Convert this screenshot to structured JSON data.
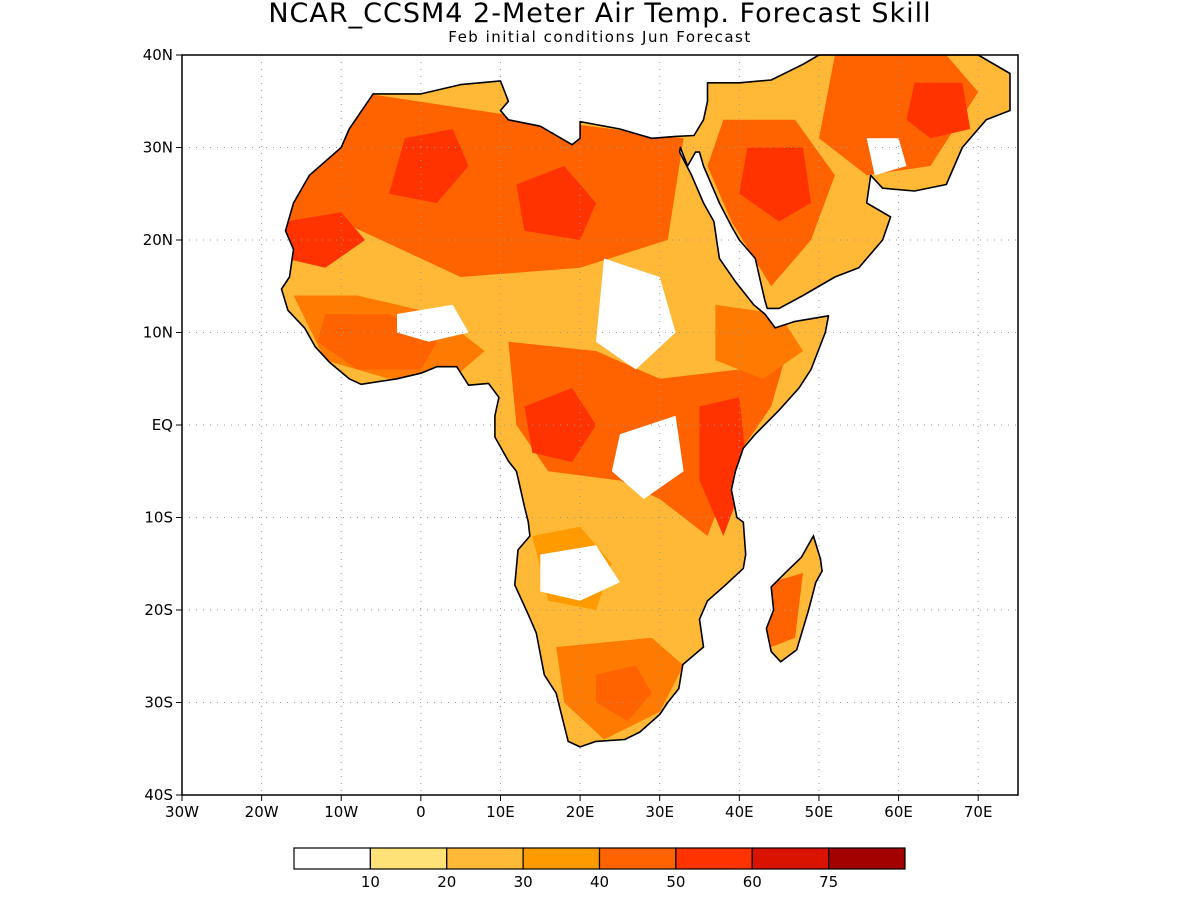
{
  "header": {
    "title": "NCAR_CCSM4 2-Meter Air Temp. Forecast Skill",
    "subtitle": "Feb initial conditions  Jun Forecast"
  },
  "map": {
    "lon_range": [
      -30,
      75
    ],
    "lat_range": [
      -40,
      40
    ],
    "lon_ticks": [
      {
        "value": -30,
        "label": "30W"
      },
      {
        "value": -20,
        "label": "20W"
      },
      {
        "value": -10,
        "label": "10W"
      },
      {
        "value": 0,
        "label": "0"
      },
      {
        "value": 10,
        "label": "10E"
      },
      {
        "value": 20,
        "label": "20E"
      },
      {
        "value": 30,
        "label": "30E"
      },
      {
        "value": 40,
        "label": "40E"
      },
      {
        "value": 50,
        "label": "50E"
      },
      {
        "value": 60,
        "label": "60E"
      },
      {
        "value": 70,
        "label": "70E"
      }
    ],
    "lat_ticks": [
      {
        "value": 40,
        "label": "40N"
      },
      {
        "value": 30,
        "label": "30N"
      },
      {
        "value": 20,
        "label": "20N"
      },
      {
        "value": 10,
        "label": "10N"
      },
      {
        "value": 0,
        "label": "EQ"
      },
      {
        "value": -10,
        "label": "10S"
      },
      {
        "value": -20,
        "label": "20S"
      },
      {
        "value": -30,
        "label": "30S"
      },
      {
        "value": -40,
        "label": "40S"
      }
    ],
    "land_outline": [
      [
        -17,
        21
      ],
      [
        -16,
        24
      ],
      [
        -14,
        27
      ],
      [
        -10,
        30
      ],
      [
        -9,
        32
      ],
      [
        -6,
        35.8
      ],
      [
        0,
        35.8
      ],
      [
        5,
        36.8
      ],
      [
        10,
        37.2
      ],
      [
        11,
        35
      ],
      [
        10,
        34
      ],
      [
        11,
        33
      ],
      [
        15,
        32.3
      ],
      [
        19,
        30.3
      ],
      [
        20,
        31
      ],
      [
        20,
        32.8
      ],
      [
        25,
        32
      ],
      [
        29,
        31
      ],
      [
        32,
        31.2
      ],
      [
        34.3,
        31.3
      ],
      [
        35.5,
        33
      ],
      [
        36,
        35
      ],
      [
        36,
        37
      ],
      [
        40,
        37
      ],
      [
        44,
        37.3
      ],
      [
        48,
        39
      ],
      [
        50,
        40
      ],
      [
        62,
        40
      ],
      [
        70,
        40
      ],
      [
        74,
        38
      ],
      [
        74,
        34
      ],
      [
        71,
        33
      ],
      [
        68,
        30
      ],
      [
        66,
        26
      ],
      [
        62,
        25.3
      ],
      [
        58,
        25.6
      ],
      [
        56.5,
        27
      ],
      [
        56,
        24
      ],
      [
        59,
        22.5
      ],
      [
        58,
        20
      ],
      [
        55,
        17
      ],
      [
        52,
        16
      ],
      [
        48,
        14
      ],
      [
        45,
        12.6
      ],
      [
        43.5,
        12.6
      ],
      [
        43.2,
        13.5
      ],
      [
        42.8,
        15
      ],
      [
        42,
        18
      ],
      [
        40,
        20
      ],
      [
        39,
        21.5
      ],
      [
        37.5,
        24
      ],
      [
        35.5,
        28
      ],
      [
        35,
        29.5
      ],
      [
        34.5,
        29.5
      ],
      [
        33.5,
        28
      ],
      [
        32.6,
        30
      ],
      [
        32.5,
        29.5
      ],
      [
        34,
        27
      ],
      [
        35.5,
        24
      ],
      [
        36.8,
        22
      ],
      [
        37.5,
        18
      ],
      [
        39.5,
        15.5
      ],
      [
        41.8,
        13
      ],
      [
        43.2,
        12
      ],
      [
        44.5,
        10.5
      ],
      [
        47,
        11.2
      ],
      [
        51.2,
        11.8
      ],
      [
        50.8,
        10
      ],
      [
        49,
        6
      ],
      [
        47.5,
        4
      ],
      [
        45,
        1.6
      ],
      [
        42,
        -1
      ],
      [
        40.5,
        -2.5
      ],
      [
        39.5,
        -5
      ],
      [
        39,
        -7
      ],
      [
        39.7,
        -10
      ],
      [
        40.5,
        -10.5
      ],
      [
        40.8,
        -14
      ],
      [
        40.5,
        -15.5
      ],
      [
        38,
        -17.5
      ],
      [
        36,
        -19
      ],
      [
        35,
        -21
      ],
      [
        35.5,
        -24
      ],
      [
        32.9,
        -25.9
      ],
      [
        32.4,
        -28.5
      ],
      [
        31,
        -30
      ],
      [
        30,
        -31.3
      ],
      [
        27.5,
        -33.2
      ],
      [
        25.6,
        -34
      ],
      [
        22,
        -34.2
      ],
      [
        20,
        -34.8
      ],
      [
        18.5,
        -34.2
      ],
      [
        18,
        -32.5
      ],
      [
        17,
        -29
      ],
      [
        15.5,
        -27
      ],
      [
        14.5,
        -22.5
      ],
      [
        13.5,
        -20.5
      ],
      [
        11.8,
        -17.3
      ],
      [
        12.2,
        -13.5
      ],
      [
        13.7,
        -12
      ],
      [
        13.5,
        -10.5
      ],
      [
        13,
        -8.8
      ],
      [
        12.3,
        -6.1
      ],
      [
        12,
        -5
      ],
      [
        11,
        -3.9
      ],
      [
        9.3,
        -1.3
      ],
      [
        9.3,
        1
      ],
      [
        9.8,
        3
      ],
      [
        8.5,
        4.5
      ],
      [
        6,
        4.3
      ],
      [
        4.5,
        6.3
      ],
      [
        2,
        6.3
      ],
      [
        0,
        5.6
      ],
      [
        -3,
        5
      ],
      [
        -7.5,
        4.4
      ],
      [
        -9,
        5
      ],
      [
        -11.5,
        6.8
      ],
      [
        -13.3,
        8.5
      ],
      [
        -14.6,
        10.5
      ],
      [
        -16.7,
        12.4
      ],
      [
        -17.5,
        14.7
      ],
      [
        -16.5,
        16
      ],
      [
        -16,
        19
      ],
      [
        -17,
        21
      ]
    ],
    "madagascar_outline": [
      [
        49.3,
        -12
      ],
      [
        50.2,
        -14.5
      ],
      [
        50.4,
        -15.8
      ],
      [
        49.6,
        -17
      ],
      [
        48.7,
        -20
      ],
      [
        47.2,
        -24.3
      ],
      [
        45.2,
        -25.6
      ],
      [
        44,
        -24.5
      ],
      [
        43.4,
        -22
      ],
      [
        44.3,
        -20
      ],
      [
        44,
        -17.5
      ],
      [
        46,
        -15.8
      ],
      [
        47.8,
        -14.3
      ],
      [
        49.3,
        -12
      ]
    ],
    "skill_areas": [
      {
        "level": 50,
        "pts": [
          [
            -12,
            36.5
          ],
          [
            15,
            33
          ],
          [
            33,
            31
          ],
          [
            31,
            20
          ],
          [
            20,
            17
          ],
          [
            5,
            16
          ],
          [
            -10,
            22
          ],
          [
            -17,
            21
          ],
          [
            -16,
            27
          ]
        ]
      },
      {
        "level": 60,
        "pts": [
          [
            -2,
            31
          ],
          [
            4,
            32
          ],
          [
            6,
            28
          ],
          [
            2,
            24
          ],
          [
            -4,
            25
          ]
        ]
      },
      {
        "level": 60,
        "pts": [
          [
            12,
            26
          ],
          [
            18,
            28
          ],
          [
            22,
            24
          ],
          [
            20,
            20
          ],
          [
            13,
            21
          ]
        ]
      },
      {
        "level": 60,
        "pts": [
          [
            -17,
            22
          ],
          [
            -10,
            23
          ],
          [
            -7,
            20
          ],
          [
            -12,
            17
          ],
          [
            -17,
            18
          ]
        ]
      },
      {
        "level": 50,
        "pts": [
          [
            38,
            33
          ],
          [
            47,
            33
          ],
          [
            52,
            27
          ],
          [
            49,
            20
          ],
          [
            44,
            15
          ],
          [
            39,
            22
          ],
          [
            36,
            28
          ]
        ]
      },
      {
        "level": 60,
        "pts": [
          [
            41,
            30
          ],
          [
            48,
            30
          ],
          [
            49,
            24
          ],
          [
            45,
            22
          ],
          [
            40,
            25
          ]
        ]
      },
      {
        "level": 50,
        "pts": [
          [
            52,
            40
          ],
          [
            66,
            40
          ],
          [
            70,
            36
          ],
          [
            64,
            28
          ],
          [
            56,
            27
          ],
          [
            50,
            31
          ]
        ]
      },
      {
        "level": 60,
        "pts": [
          [
            62,
            37
          ],
          [
            68,
            37
          ],
          [
            69,
            32
          ],
          [
            64,
            31
          ],
          [
            61,
            33
          ]
        ]
      },
      {
        "level": 40,
        "pts": [
          [
            -16,
            14
          ],
          [
            -8,
            14
          ],
          [
            2,
            12
          ],
          [
            8,
            8
          ],
          [
            4,
            5
          ],
          [
            -4,
            5
          ],
          [
            -12,
            7
          ]
        ]
      },
      {
        "level": 50,
        "pts": [
          [
            -12,
            12
          ],
          [
            -4,
            12
          ],
          [
            2,
            9
          ],
          [
            0,
            6
          ],
          [
            -8,
            6
          ],
          [
            -13,
            9
          ]
        ]
      },
      {
        "level": 50,
        "pts": [
          [
            11,
            9
          ],
          [
            22,
            8
          ],
          [
            30,
            5
          ],
          [
            40,
            6
          ],
          [
            46,
            8
          ],
          [
            44,
            2
          ],
          [
            40,
            -3
          ],
          [
            36,
            -12
          ],
          [
            30,
            -8
          ],
          [
            25,
            -6
          ],
          [
            16,
            -5
          ],
          [
            12,
            0
          ]
        ]
      },
      {
        "level": 60,
        "pts": [
          [
            13,
            2
          ],
          [
            19,
            4
          ],
          [
            22,
            0
          ],
          [
            19,
            -4
          ],
          [
            14,
            -3
          ]
        ]
      },
      {
        "level": 60,
        "pts": [
          [
            35,
            2
          ],
          [
            40,
            3
          ],
          [
            41,
            -5
          ],
          [
            38,
            -12
          ],
          [
            35,
            -6
          ]
        ]
      },
      {
        "level": 40,
        "pts": [
          [
            37,
            13
          ],
          [
            45,
            12
          ],
          [
            48,
            8
          ],
          [
            43,
            5
          ],
          [
            37,
            7
          ]
        ]
      },
      {
        "level": 40,
        "pts": [
          [
            17,
            -24
          ],
          [
            29,
            -23
          ],
          [
            33,
            -26
          ],
          [
            30,
            -31
          ],
          [
            23,
            -34
          ],
          [
            18,
            -30
          ]
        ]
      },
      {
        "level": 50,
        "pts": [
          [
            22,
            -27
          ],
          [
            27,
            -26
          ],
          [
            29,
            -29
          ],
          [
            26,
            -32
          ],
          [
            22,
            -30
          ]
        ]
      },
      {
        "level": 50,
        "pts": [
          [
            44,
            -17
          ],
          [
            48,
            -16
          ],
          [
            47,
            -23
          ],
          [
            44,
            -24
          ],
          [
            43,
            -20
          ]
        ]
      },
      {
        "level": 30,
        "pts": [
          [
            14,
            -12
          ],
          [
            20,
            -11
          ],
          [
            24,
            -15
          ],
          [
            22,
            -20
          ],
          [
            16,
            -19
          ]
        ]
      }
    ],
    "no_skill_areas": [
      [
        [
          23,
          18
        ],
        [
          30,
          16
        ],
        [
          32,
          10
        ],
        [
          27,
          6
        ],
        [
          22,
          9
        ]
      ],
      [
        [
          -3,
          12
        ],
        [
          4,
          13
        ],
        [
          6,
          10
        ],
        [
          1,
          9
        ],
        [
          -3,
          10
        ]
      ],
      [
        [
          25,
          -1
        ],
        [
          32,
          1
        ],
        [
          33,
          -5
        ],
        [
          28,
          -8
        ],
        [
          24,
          -5
        ]
      ],
      [
        [
          15,
          -14
        ],
        [
          22,
          -13
        ],
        [
          25,
          -17
        ],
        [
          20,
          -19
        ],
        [
          15,
          -18
        ]
      ],
      [
        [
          56,
          31
        ],
        [
          60,
          31
        ],
        [
          61,
          28
        ],
        [
          57,
          27
        ]
      ]
    ]
  },
  "colorbar": {
    "levels": [
      {
        "color": "#ffffff",
        "label": "10"
      },
      {
        "color": "#ffe277",
        "label": "20"
      },
      {
        "color": "#ffb937",
        "label": "30"
      },
      {
        "color": "#ff9a00",
        "label": "40"
      },
      {
        "color": "#ff6300",
        "label": "50"
      },
      {
        "color": "#ff3300",
        "label": "60"
      },
      {
        "color": "#d91300",
        "label": "75"
      },
      {
        "color": "#a30000",
        "label": ""
      }
    ]
  },
  "colors": {
    "base_land": "#ffb937",
    "level_30": "#ff9a00",
    "level_40": "#ff7a00",
    "level_50": "#ff6300",
    "level_60": "#ff3300",
    "level_75": "#d91300",
    "frame": "#000000",
    "coastline": "#000000"
  }
}
